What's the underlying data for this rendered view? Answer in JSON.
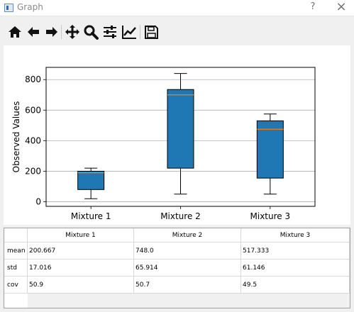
{
  "window": {
    "title": "Graph",
    "help": "?",
    "close": "×"
  },
  "toolbar": {
    "items": [
      "home-icon",
      "back-arrow-icon",
      "forward-arrow-icon",
      "pan-icon",
      "zoom-icon",
      "configure-subplots-icon",
      "edit-axis-icon",
      "save-icon"
    ]
  },
  "chart_data": {
    "type": "box",
    "title": "",
    "xlabel": "",
    "ylabel": "Observed Values",
    "ylim": [
      -30,
      880
    ],
    "yticks": [
      0,
      200,
      400,
      600,
      800
    ],
    "grid": "horizontal",
    "categories": [
      "Mixture 1",
      "Mixture 2",
      "Mixture 3"
    ],
    "box_color": "#1f77b4",
    "median_color": "#ff7f0e",
    "boxes": [
      {
        "name": "Mixture 1",
        "whisker_low": 20,
        "q1": 80,
        "median": 190,
        "q3": 200,
        "whisker_high": 220
      },
      {
        "name": "Mixture 2",
        "whisker_low": 50,
        "q1": 220,
        "median": 700,
        "q3": 735,
        "whisker_high": 840
      },
      {
        "name": "Mixture 3",
        "whisker_low": 50,
        "q1": 155,
        "median": 475,
        "q3": 530,
        "whisker_high": 575
      }
    ]
  },
  "table": {
    "columns": [
      "Mixture 1",
      "Mixture 2",
      "Mixture 3"
    ],
    "rows": [
      {
        "label": "mean",
        "values": [
          "200.667",
          "748.0",
          "517.333"
        ]
      },
      {
        "label": "std",
        "values": [
          "17.016",
          "65.914",
          "61.146"
        ]
      },
      {
        "label": "cov",
        "values": [
          "50.9",
          "50.7",
          "49.5"
        ]
      }
    ]
  }
}
